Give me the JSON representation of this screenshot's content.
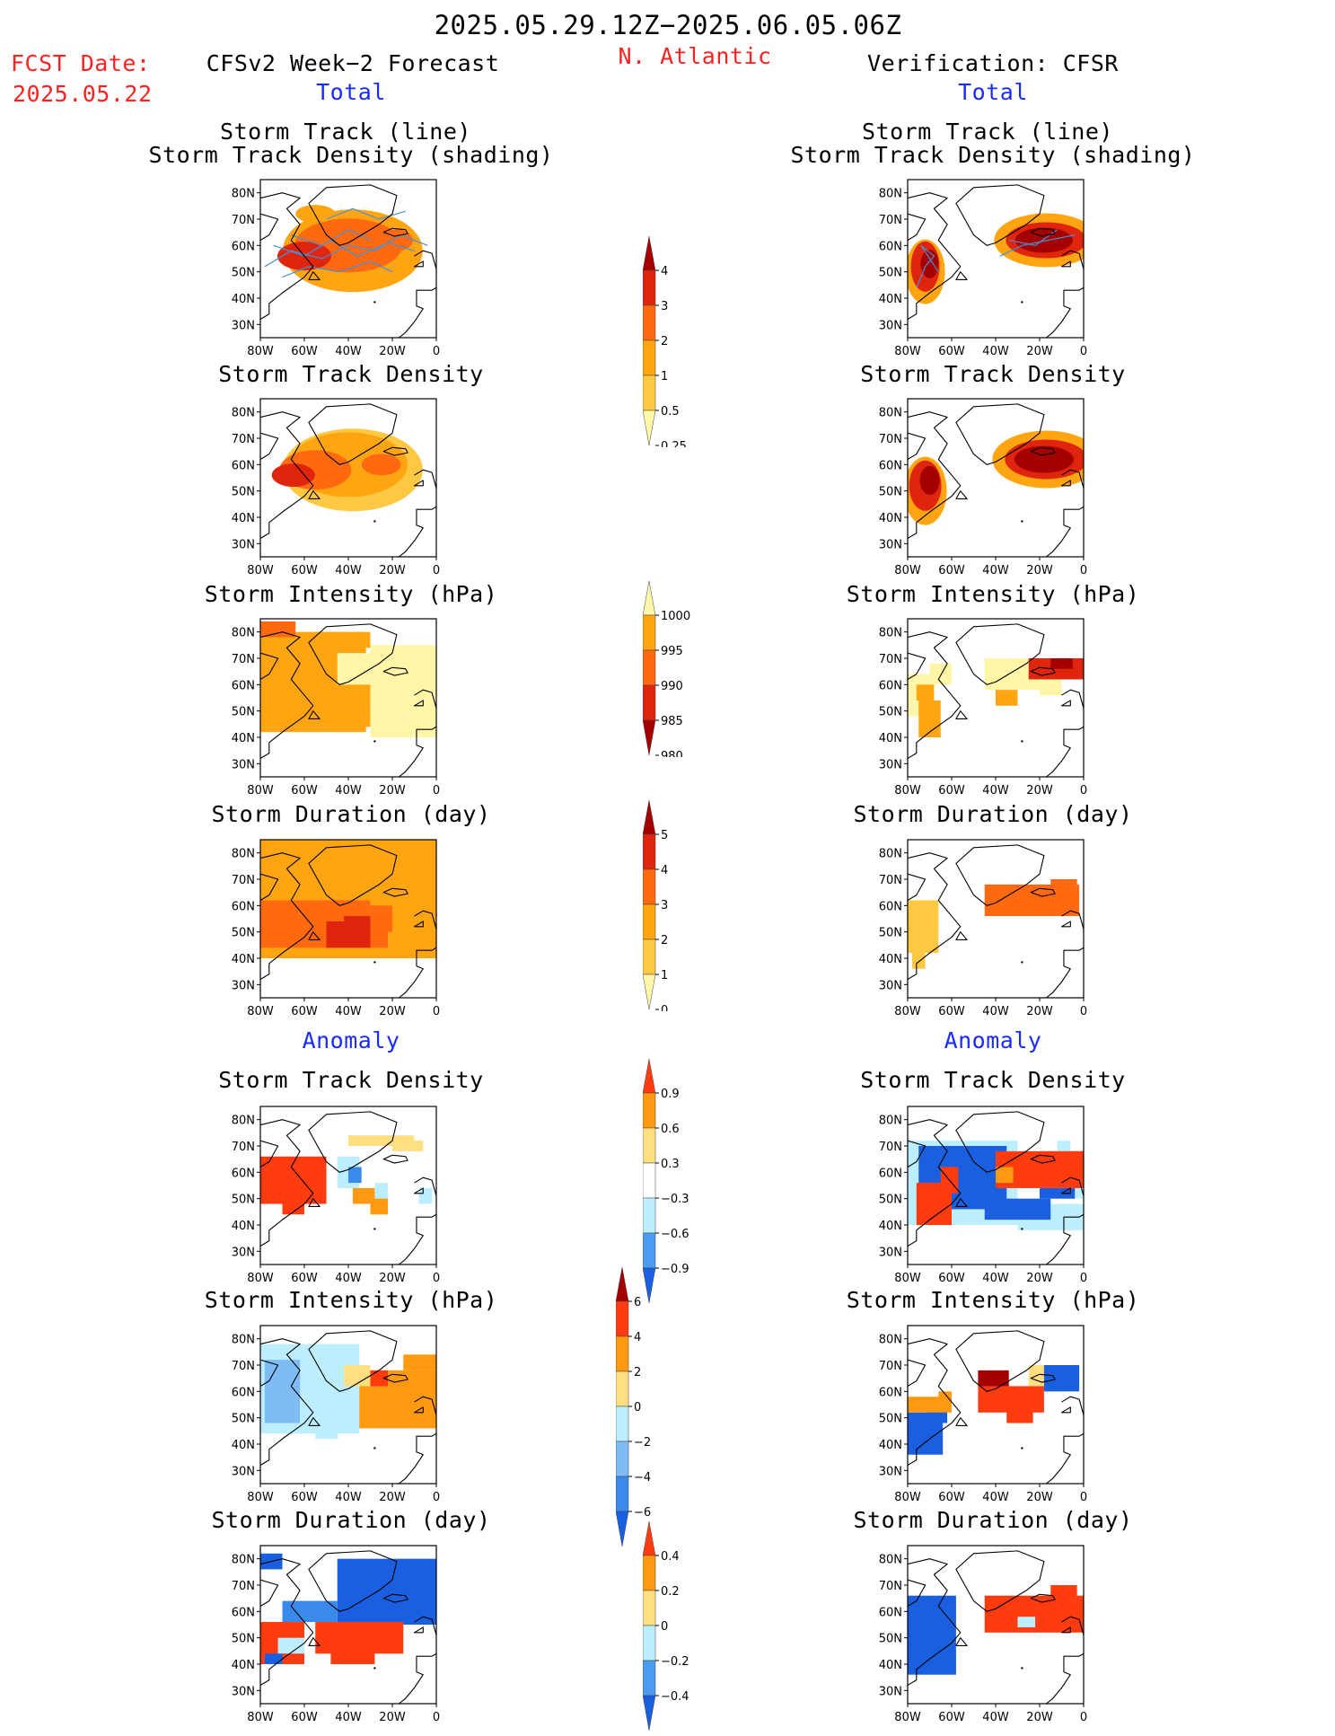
{
  "header": {
    "date_range": "2025.05.29.12Z−2025.06.05.06Z",
    "region": "N. Atlantic",
    "fcst_label": "FCST Date:",
    "fcst_date": "2025.05.22",
    "left_title": "CFSv2 Week−2 Forecast",
    "right_title": "Verification: CFSR"
  },
  "sections": {
    "total": "Total",
    "anomaly": "Anomaly"
  },
  "panel_titles": {
    "track_line": "Storm Track (line)",
    "track_shading": "Storm Track Density (shading)",
    "density": "Storm Track Density",
    "intensity": "Storm Intensity (hPa)",
    "duration": "Storm Duration (day)"
  },
  "axes": {
    "lat_labels": [
      "80N",
      "70N",
      "60N",
      "50N",
      "40N",
      "30N"
    ],
    "lon_labels": [
      "80W",
      "60W",
      "40W",
      "20W",
      "0"
    ]
  },
  "colorbars": {
    "density_total": {
      "labels": [
        "4",
        "3",
        "2",
        "1",
        "0.5",
        "0.25"
      ],
      "colors": [
        "#a50000",
        "#e0250f",
        "#ff6a10",
        "#ffa512",
        "#ffc843",
        "#fff6a8"
      ]
    },
    "intensity_total": {
      "labels": [
        "1000",
        "995",
        "990",
        "985",
        "980"
      ],
      "colors": [
        "#fff6a8",
        "#ffa512",
        "#ff6a10",
        "#e0250f",
        "#a50000"
      ]
    },
    "duration_total": {
      "labels": [
        "5",
        "4",
        "3",
        "2",
        "1",
        "0"
      ],
      "colors": [
        "#a50000",
        "#e0250f",
        "#ff6a10",
        "#ffa512",
        "#ffc843",
        "#fff6a8"
      ]
    },
    "density_anom": {
      "labels": [
        "0.9",
        "0.6",
        "0.3",
        "−0.3",
        "−0.6",
        "−0.9"
      ],
      "colors": [
        "#ff3c10",
        "#ff9a10",
        "#ffdf80",
        "#ffffff",
        "#bdeefe",
        "#4a9cf0",
        "#1a5fe0"
      ]
    },
    "intensity_anom": {
      "labels": [
        "6",
        "4",
        "2",
        "0",
        "−2",
        "−4",
        "−6"
      ],
      "colors": [
        "#a50000",
        "#ff3c10",
        "#ff9a10",
        "#ffdf80",
        "#bdeefe",
        "#7fbcf5",
        "#3a8aec",
        "#1a5fe0"
      ]
    },
    "duration_anom": {
      "labels": [
        "0.4",
        "0.2",
        "0",
        "−0.2",
        "−0.4"
      ],
      "colors": [
        "#ff3c10",
        "#ff9a10",
        "#ffdf80",
        "#bdeefe",
        "#4a9cf0",
        "#1a5fe0"
      ]
    }
  }
}
